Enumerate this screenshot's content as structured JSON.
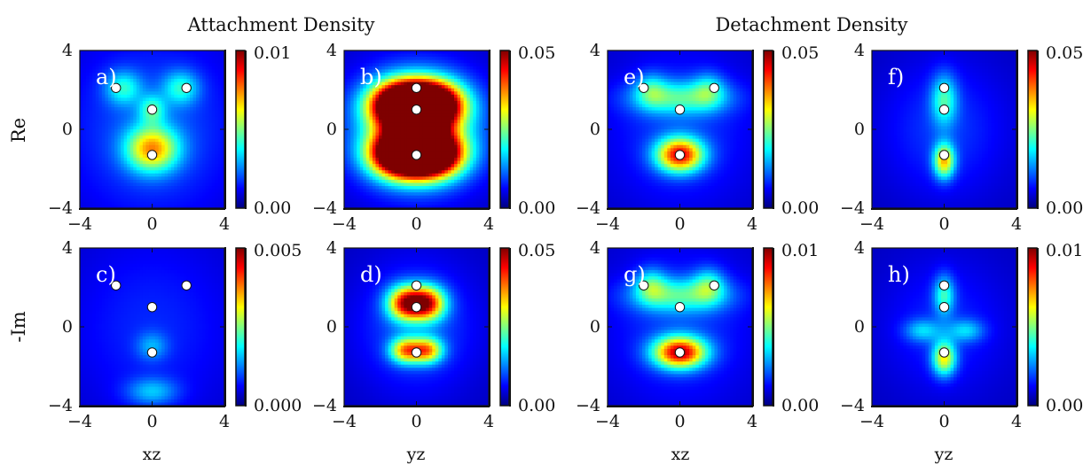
{
  "figure": {
    "group_titles": [
      "Attachment Density",
      "Detachment Density"
    ],
    "row_labels": [
      "Re",
      "-Im"
    ],
    "column_labels": [
      "xz",
      "yz",
      "xz",
      "yz"
    ],
    "axis_ticks": [
      "−4",
      "0",
      "4"
    ],
    "colormap": [
      "#00007f",
      "#0000ff",
      "#0080ff",
      "#00ffff",
      "#80ff80",
      "#ffff00",
      "#ff8000",
      "#ff0000",
      "#7f0000"
    ]
  },
  "chart_data": [
    {
      "type": "heatmap",
      "panel": "a)",
      "plane": "xz",
      "quantity": "Attachment Density",
      "part": "Re",
      "xlim": [
        -4,
        4
      ],
      "ylim": [
        -4,
        4
      ],
      "colorbar": {
        "min": "0.00",
        "max": "0.01"
      },
      "atoms": [
        [
          -2.0,
          2.1
        ],
        [
          1.9,
          2.1
        ],
        [
          0.0,
          1.0
        ],
        [
          0.0,
          -1.3
        ]
      ],
      "blobs": [
        [
          0.0,
          -1.0,
          1.0,
          0.8,
          0.55
        ],
        [
          0.0,
          1.0,
          0.5,
          0.5,
          0.25
        ],
        [
          -1.6,
          2.1,
          0.7,
          0.6,
          0.25
        ],
        [
          1.6,
          2.1,
          0.7,
          0.6,
          0.25
        ],
        [
          0.0,
          0.0,
          3.5,
          3.5,
          0.15
        ]
      ]
    },
    {
      "type": "heatmap",
      "panel": "b)",
      "plane": "yz",
      "quantity": "Attachment Density",
      "part": "Re",
      "xlim": [
        -4,
        4
      ],
      "ylim": [
        -4,
        4
      ],
      "colorbar": {
        "min": "0.00",
        "max": "0.05"
      },
      "atoms": [
        [
          0.0,
          2.1
        ],
        [
          0.0,
          1.0
        ],
        [
          0.0,
          -1.3
        ]
      ],
      "blobs": [
        [
          -0.8,
          1.2,
          1.2,
          0.8,
          1.3
        ],
        [
          0.8,
          1.2,
          1.2,
          0.8,
          1.3
        ],
        [
          -0.8,
          -1.2,
          1.2,
          0.8,
          1.3
        ],
        [
          0.8,
          -1.2,
          1.2,
          0.8,
          1.3
        ],
        [
          0.0,
          0.0,
          2.6,
          2.2,
          0.35
        ]
      ]
    },
    {
      "type": "heatmap",
      "panel": "e)",
      "plane": "xz",
      "quantity": "Detachment Density",
      "part": "Re",
      "xlim": [
        -4,
        4
      ],
      "ylim": [
        -4,
        4
      ],
      "colorbar": {
        "min": "0.00",
        "max": "0.05"
      },
      "atoms": [
        [
          -2.0,
          2.1
        ],
        [
          1.9,
          2.1
        ],
        [
          0.0,
          1.0
        ],
        [
          0.0,
          -1.3
        ]
      ],
      "blobs": [
        [
          0.0,
          -1.3,
          0.9,
          0.6,
          0.75
        ],
        [
          0.0,
          1.6,
          1.9,
          0.6,
          0.3
        ],
        [
          -1.6,
          2.0,
          0.6,
          0.6,
          0.2
        ],
        [
          1.6,
          2.0,
          0.6,
          0.6,
          0.2
        ],
        [
          0.0,
          0.0,
          3.0,
          3.0,
          0.12
        ]
      ]
    },
    {
      "type": "heatmap",
      "panel": "f)",
      "plane": "yz",
      "quantity": "Detachment Density",
      "part": "Re",
      "xlim": [
        -4,
        4
      ],
      "ylim": [
        -4,
        4
      ],
      "colorbar": {
        "min": "0.00",
        "max": "0.05"
      },
      "atoms": [
        [
          0.0,
          2.1
        ],
        [
          0.0,
          1.0
        ],
        [
          0.0,
          -1.3
        ]
      ],
      "blobs": [
        [
          0.0,
          -1.6,
          0.4,
          0.6,
          0.55
        ],
        [
          0.0,
          1.5,
          0.5,
          0.9,
          0.3
        ],
        [
          0.0,
          0.0,
          2.5,
          2.5,
          0.12
        ]
      ]
    },
    {
      "type": "heatmap",
      "panel": "c)",
      "plane": "xz",
      "quantity": "Attachment Density",
      "part": "-Im",
      "xlim": [
        -4,
        4
      ],
      "ylim": [
        -4,
        4
      ],
      "colorbar": {
        "min": "0.000",
        "max": "0.005"
      },
      "atoms": [
        [
          -2.0,
          2.1
        ],
        [
          1.9,
          2.1
        ],
        [
          0.0,
          1.0
        ],
        [
          0.0,
          -1.3
        ]
      ],
      "blobs": [
        [
          0.0,
          -3.3,
          1.0,
          0.5,
          0.2
        ],
        [
          0.0,
          0.0,
          3.5,
          3.5,
          0.1
        ],
        [
          0.0,
          -1.0,
          0.6,
          0.5,
          0.15
        ]
      ]
    },
    {
      "type": "heatmap",
      "panel": "d)",
      "plane": "yz",
      "quantity": "Attachment Density",
      "part": "-Im",
      "xlim": [
        -4,
        4
      ],
      "ylim": [
        -4,
        4
      ],
      "colorbar": {
        "min": "0.00",
        "max": "0.05"
      },
      "atoms": [
        [
          0.0,
          2.1
        ],
        [
          0.0,
          1.0
        ],
        [
          0.0,
          -1.3
        ]
      ],
      "blobs": [
        [
          -0.6,
          1.2,
          0.7,
          0.6,
          0.7
        ],
        [
          0.6,
          1.2,
          0.7,
          0.6,
          0.7
        ],
        [
          -0.6,
          -1.2,
          0.6,
          0.45,
          0.55
        ],
        [
          0.6,
          -1.2,
          0.6,
          0.45,
          0.55
        ],
        [
          0.0,
          0.0,
          2.4,
          2.4,
          0.15
        ]
      ]
    },
    {
      "type": "heatmap",
      "panel": "g)",
      "plane": "xz",
      "quantity": "Detachment Density",
      "part": "-Im",
      "xlim": [
        -4,
        4
      ],
      "ylim": [
        -4,
        4
      ],
      "colorbar": {
        "min": "0.00",
        "max": "0.01"
      },
      "atoms": [
        [
          -2.0,
          2.1
        ],
        [
          1.9,
          2.1
        ],
        [
          0.0,
          1.0
        ],
        [
          0.0,
          -1.3
        ]
      ],
      "blobs": [
        [
          0.0,
          -1.3,
          1.0,
          0.55,
          0.8
        ],
        [
          0.0,
          1.6,
          1.9,
          0.6,
          0.3
        ],
        [
          -1.6,
          2.1,
          0.6,
          0.6,
          0.25
        ],
        [
          1.6,
          2.1,
          0.6,
          0.6,
          0.25
        ],
        [
          0.0,
          0.0,
          3.0,
          3.0,
          0.12
        ]
      ]
    },
    {
      "type": "heatmap",
      "panel": "h)",
      "plane": "yz",
      "quantity": "Detachment Density",
      "part": "-Im",
      "xlim": [
        -4,
        4
      ],
      "ylim": [
        -4,
        4
      ],
      "colorbar": {
        "min": "0.00",
        "max": "0.01"
      },
      "atoms": [
        [
          0.0,
          2.1
        ],
        [
          0.0,
          1.0
        ],
        [
          0.0,
          -1.3
        ]
      ],
      "blobs": [
        [
          0.0,
          -1.6,
          0.45,
          0.6,
          0.5
        ],
        [
          0.0,
          1.6,
          0.4,
          0.7,
          0.3
        ],
        [
          -1.2,
          -0.2,
          0.7,
          0.4,
          0.2
        ],
        [
          1.2,
          -0.2,
          0.7,
          0.4,
          0.2
        ],
        [
          0.0,
          0.0,
          2.5,
          2.5,
          0.1
        ]
      ]
    }
  ]
}
